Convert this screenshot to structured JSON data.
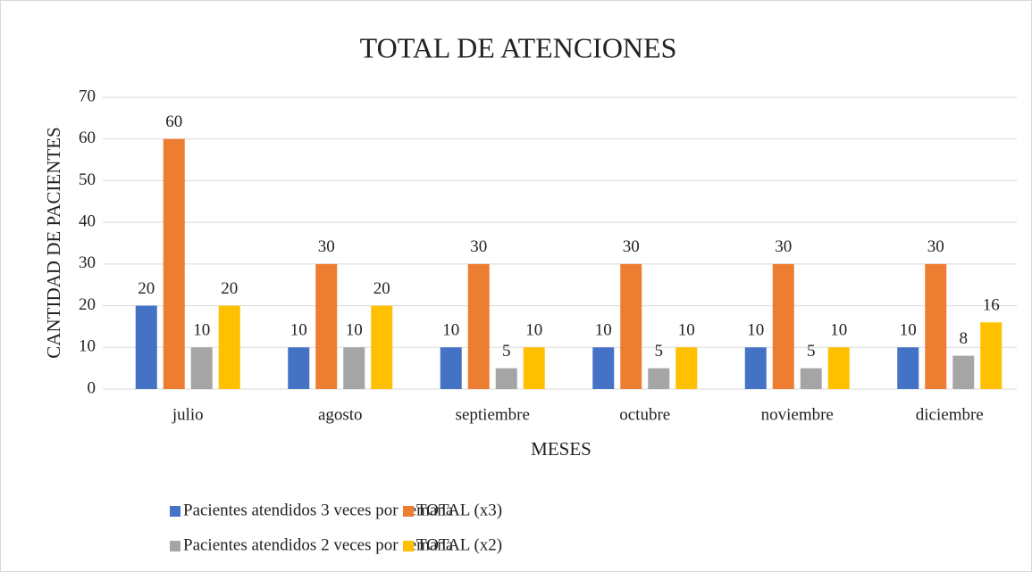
{
  "chart_data": {
    "type": "bar",
    "title": "TOTAL DE ATENCIONES",
    "x_label": "MESES",
    "y_label": "CANTIDAD DE PACIENTES",
    "categories": [
      "julio",
      "agosto",
      "septiembre",
      "octubre",
      "noviembre",
      "diciembre"
    ],
    "series": [
      {
        "name": "Pacientes atendidos 3 veces por semana",
        "color": "#4472c4",
        "values": [
          20,
          10,
          10,
          10,
          10,
          10
        ]
      },
      {
        "name": "TOTAL (x3)",
        "color": "#ed7d31",
        "values": [
          60,
          30,
          30,
          30,
          30,
          30
        ]
      },
      {
        "name": "Pacientes atendidos 2 veces por semana",
        "color": "#a5a5a5",
        "values": [
          10,
          10,
          5,
          5,
          5,
          8
        ]
      },
      {
        "name": "TOTAL (x2)",
        "color": "#ffc000",
        "values": [
          20,
          20,
          10,
          10,
          10,
          16
        ]
      }
    ],
    "ylim": [
      0,
      70
    ],
    "yticks": [
      0,
      10,
      20,
      30,
      40,
      50,
      60,
      70
    ],
    "grid": true
  }
}
